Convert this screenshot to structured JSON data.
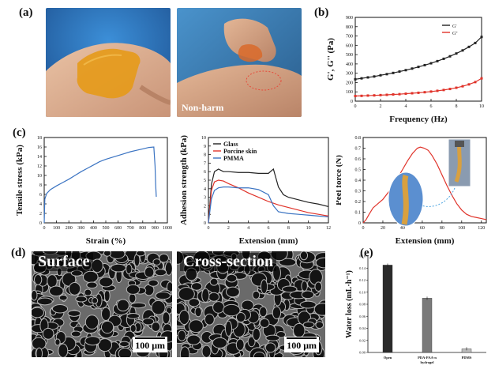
{
  "panels": {
    "a": {
      "label": "(a)",
      "caption": "Non-harm"
    },
    "b": {
      "label": "(b)"
    },
    "c": {
      "label": "(c)"
    },
    "d": {
      "label": "(d)",
      "surface_title": "Surface",
      "cross_title": "Cross-section",
      "scale1": "100 μm",
      "scale2": "100 μm"
    },
    "e": {
      "label": "(e)"
    }
  },
  "colors": {
    "black_series": "#222222",
    "red_series": "#e0332a",
    "blue_series": "#3a73c2",
    "axis": "#111111"
  },
  "chart_data": [
    {
      "id": "rheology",
      "type": "line",
      "xlabel": "Frequency (Hz)",
      "ylabel": "G', G'' (Pa)",
      "xlim": [
        0,
        10
      ],
      "ylim": [
        0,
        900
      ],
      "xticks": [
        0,
        2,
        4,
        6,
        8,
        10
      ],
      "yticks": [
        0,
        100,
        200,
        300,
        400,
        500,
        600,
        700,
        800,
        900
      ],
      "legend": "top-right",
      "series": [
        {
          "name": "G'",
          "color": "#222222",
          "x": [
            0,
            0.5,
            1,
            1.5,
            2,
            2.5,
            3,
            3.5,
            4,
            4.5,
            5,
            5.5,
            6,
            6.5,
            7,
            7.5,
            8,
            8.5,
            9,
            9.5,
            10
          ],
          "y": [
            235,
            245,
            255,
            265,
            278,
            290,
            303,
            318,
            333,
            350,
            368,
            387,
            407,
            430,
            455,
            482,
            512,
            545,
            583,
            625,
            690
          ]
        },
        {
          "name": "G''",
          "color": "#e0332a",
          "x": [
            0,
            0.5,
            1,
            1.5,
            2,
            2.5,
            3,
            3.5,
            4,
            4.5,
            5,
            5.5,
            6,
            6.5,
            7,
            7.5,
            8,
            8.5,
            9,
            9.5,
            10
          ],
          "y": [
            55,
            57,
            60,
            62,
            65,
            68,
            72,
            75,
            80,
            85,
            90,
            96,
            103,
            111,
            120,
            131,
            144,
            160,
            180,
            205,
            245
          ]
        }
      ]
    },
    {
      "id": "tensile",
      "type": "line",
      "xlabel": "Strain (%)",
      "ylabel": "Tensile stress (kPa)",
      "xlim": [
        0,
        1000
      ],
      "ylim": [
        0,
        18
      ],
      "xticks": [
        0,
        100,
        200,
        300,
        400,
        500,
        600,
        700,
        800,
        900,
        1000
      ],
      "yticks": [
        0,
        2,
        4,
        6,
        8,
        10,
        12,
        14,
        16,
        18
      ],
      "series": [
        {
          "name": "",
          "color": "#3a73c2",
          "x": [
            0,
            5,
            20,
            50,
            100,
            150,
            200,
            250,
            300,
            350,
            400,
            450,
            500,
            550,
            600,
            650,
            700,
            750,
            800,
            850,
            890,
            900,
            905,
            910
          ],
          "y": [
            0,
            5,
            6.2,
            7.0,
            7.8,
            8.5,
            9.2,
            10.0,
            10.8,
            11.5,
            12.2,
            12.9,
            13.4,
            13.8,
            14.2,
            14.6,
            15.0,
            15.3,
            15.6,
            15.9,
            16.0,
            12,
            8,
            5.5
          ]
        }
      ]
    },
    {
      "id": "adhesion",
      "type": "line",
      "xlabel": "Extension (mm)",
      "ylabel": "Adhesion strength (kPa)",
      "xlim": [
        0,
        12
      ],
      "ylim": [
        0,
        10
      ],
      "xticks": [
        0,
        2,
        4,
        6,
        8,
        10,
        12
      ],
      "yticks": [
        0,
        1,
        2,
        3,
        4,
        5,
        6,
        7,
        8,
        9,
        10
      ],
      "legend": "top-left",
      "series": [
        {
          "name": "Glass",
          "color": "#222222",
          "x": [
            0,
            0.3,
            0.6,
            1,
            1.5,
            2,
            3,
            4,
            5,
            6,
            6.5,
            7,
            7.5,
            8,
            9,
            10,
            11,
            12
          ],
          "y": [
            0,
            4.5,
            6.0,
            6.3,
            6.0,
            6.0,
            5.9,
            5.9,
            5.8,
            5.8,
            6.3,
            4.2,
            3.3,
            3.0,
            2.7,
            2.4,
            2.2,
            1.9
          ]
        },
        {
          "name": "Porcine skin",
          "color": "#e0332a",
          "x": [
            0,
            0.3,
            0.6,
            1,
            1.5,
            2,
            3,
            4,
            5,
            6,
            7,
            8,
            9,
            10,
            11,
            12
          ],
          "y": [
            0,
            3.8,
            4.8,
            5.0,
            4.9,
            4.6,
            4.1,
            3.5,
            3.0,
            2.5,
            2.1,
            1.8,
            1.5,
            1.2,
            1.0,
            0.8
          ]
        },
        {
          "name": "PMMA",
          "color": "#3a73c2",
          "x": [
            0,
            0.3,
            0.6,
            1,
            1.5,
            2,
            3,
            4,
            5,
            6,
            6.5,
            7,
            8,
            9,
            10,
            11,
            12
          ],
          "y": [
            0,
            2.8,
            3.8,
            4.1,
            4.2,
            4.2,
            4.1,
            4.1,
            3.9,
            3.3,
            2.0,
            1.3,
            1.1,
            1.0,
            0.9,
            0.8,
            0.7
          ]
        }
      ]
    },
    {
      "id": "peel",
      "type": "line",
      "xlabel": "Extension (mm)",
      "ylabel": "Peel force (N)",
      "xlim": [
        0,
        125
      ],
      "ylim": [
        0,
        0.8
      ],
      "xticks": [
        0,
        20,
        40,
        60,
        80,
        100,
        120
      ],
      "yticks": [
        0,
        0.1,
        0.2,
        0.3,
        0.4,
        0.5,
        0.6,
        0.7,
        0.8
      ],
      "series": [
        {
          "name": "",
          "color": "#e0332a",
          "x": [
            0,
            3,
            6,
            10,
            15,
            20,
            25,
            30,
            35,
            40,
            45,
            50,
            55,
            58,
            62,
            66,
            70,
            75,
            80,
            85,
            90,
            95,
            100,
            105,
            110,
            115,
            120,
            125
          ],
          "y": [
            0,
            0.03,
            0.08,
            0.14,
            0.18,
            0.22,
            0.28,
            0.34,
            0.42,
            0.5,
            0.58,
            0.65,
            0.7,
            0.71,
            0.7,
            0.68,
            0.63,
            0.55,
            0.45,
            0.35,
            0.26,
            0.18,
            0.12,
            0.08,
            0.06,
            0.05,
            0.04,
            0.03
          ]
        }
      ]
    },
    {
      "id": "waterloss",
      "type": "bar",
      "ylabel": "Water loss (mL·h⁻¹)",
      "categories": [
        "Open",
        "PDA-PAA-n hydrogel",
        "PDMS"
      ],
      "values": [
        0.145,
        0.09,
        0.006
      ],
      "colors": [
        "#2a2a2a",
        "#7a7a7a",
        "#bdbdbd"
      ],
      "ylim": [
        0,
        0.16
      ],
      "yticks": [
        0,
        0.02,
        0.04,
        0.06,
        0.08,
        0.1,
        0.12,
        0.14,
        0.16
      ]
    }
  ]
}
